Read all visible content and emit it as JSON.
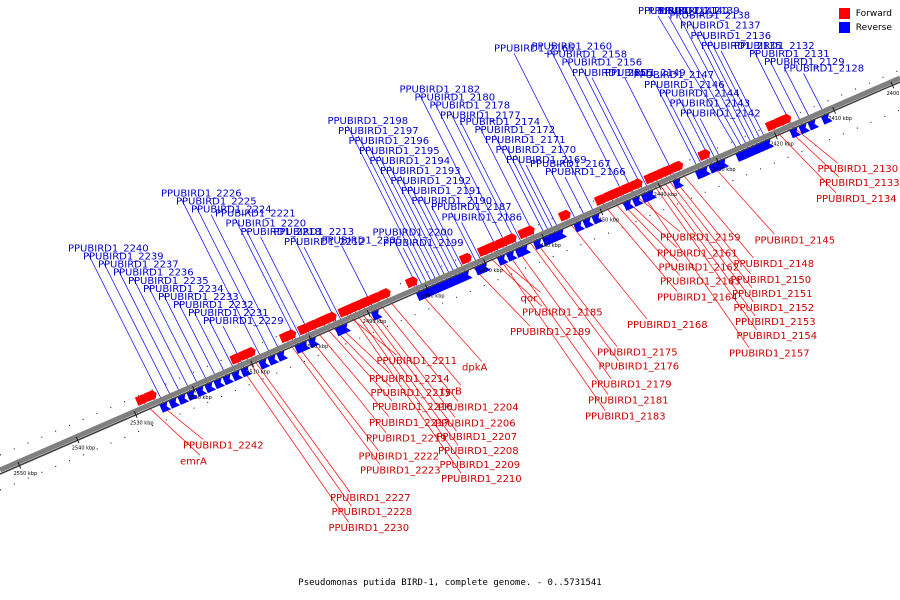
{
  "legend": {
    "items": [
      {
        "label": "Forward",
        "color": "#ff0000"
      },
      {
        "label": "Reverse",
        "color": "#0000ff"
      }
    ]
  },
  "caption": "Pseudomonas putida BIRD-1, complete genome. - 0..5731541",
  "colors": {
    "forward": "#ff0000",
    "reverse": "#0000ff",
    "backbone": "#808080"
  },
  "ticks": [
    "2400 kbp",
    "2410 kbp",
    "2420 kbp",
    "2430 kbp",
    "2440 kbp",
    "2450 kbp",
    "2460 kbp",
    "2470 kbp",
    "2480 kbp",
    "2490 kbp",
    "2500 kbp",
    "2510 kbp",
    "2520 kbp",
    "2530 kbp",
    "2540 kbp",
    "2550 kbp"
  ],
  "genes": [
    {
      "name": "PPUBIRD1_2128",
      "strand": "reverse",
      "pos": 0.085
    },
    {
      "name": "PPUBIRD1_2129",
      "strand": "reverse",
      "pos": 0.1
    },
    {
      "name": "PPUBIRD1_2130",
      "strand": "forward",
      "pos": 0.125
    },
    {
      "name": "PPUBIRD1_2131",
      "strand": "reverse",
      "pos": 0.11
    },
    {
      "name": "PPUBIRD1_2132",
      "strand": "reverse",
      "pos": 0.12
    },
    {
      "name": "PPUBIRD1_2133",
      "strand": "forward",
      "pos": 0.13
    },
    {
      "name": "PPUBIRD1_2134",
      "strand": "forward",
      "pos": 0.14
    },
    {
      "name": "PPUBIRD1_2135",
      "strand": "reverse",
      "pos": 0.15
    },
    {
      "name": "PPUBIRD1_2136",
      "strand": "reverse",
      "pos": 0.155
    },
    {
      "name": "PPUBIRD1_2137",
      "strand": "reverse",
      "pos": 0.16
    },
    {
      "name": "PPUBIRD1_2138",
      "strand": "reverse",
      "pos": 0.165
    },
    {
      "name": "PPUBIRD1_2139",
      "strand": "reverse",
      "pos": 0.17
    },
    {
      "name": "PPUBIRD1_2140",
      "strand": "reverse",
      "pos": 0.175
    },
    {
      "name": "PPUBIRD1_2141",
      "strand": "reverse",
      "pos": 0.18
    },
    {
      "name": "PPUBIRD1_2142",
      "strand": "reverse",
      "pos": 0.2
    },
    {
      "name": "PPUBIRD1_2143",
      "strand": "reverse",
      "pos": 0.205
    },
    {
      "name": "PPUBIRD1_2144",
      "strand": "reverse",
      "pos": 0.21
    },
    {
      "name": "PPUBIRD1_2145",
      "strand": "forward",
      "pos": 0.215
    },
    {
      "name": "PPUBIRD1_2146",
      "strand": "reverse",
      "pos": 0.22
    },
    {
      "name": "PPUBIRD1_2147",
      "strand": "reverse",
      "pos": 0.225
    },
    {
      "name": "PPUBIRD1_2148",
      "strand": "forward",
      "pos": 0.245
    },
    {
      "name": "PPUBIRD1_2149",
      "strand": "reverse",
      "pos": 0.25
    },
    {
      "name": "PPUBIRD1_2150",
      "strand": "forward",
      "pos": 0.255
    },
    {
      "name": "PPUBIRD1_2151",
      "strand": "forward",
      "pos": 0.26
    },
    {
      "name": "PPUBIRD1_2152",
      "strand": "forward",
      "pos": 0.265
    },
    {
      "name": "PPUBIRD1_2153",
      "strand": "forward",
      "pos": 0.27
    },
    {
      "name": "PPUBIRD1_2154",
      "strand": "forward",
      "pos": 0.275
    },
    {
      "name": "PPUBIRD1_2155",
      "strand": "reverse",
      "pos": 0.28
    },
    {
      "name": "PPUBIRD1_2156",
      "strand": "reverse",
      "pos": 0.285
    },
    {
      "name": "PPUBIRD1_2157",
      "strand": "forward",
      "pos": 0.29
    },
    {
      "name": "PPUBIRD1_2158",
      "strand": "reverse",
      "pos": 0.295
    },
    {
      "name": "PPUBIRD1_2159",
      "strand": "forward",
      "pos": 0.3
    },
    {
      "name": "PPUBIRD1_2160",
      "strand": "reverse",
      "pos": 0.305
    },
    {
      "name": "PPUBIRD1_2161",
      "strand": "forward",
      "pos": 0.31
    },
    {
      "name": "PPUBIRD1_2162",
      "strand": "forward",
      "pos": 0.315
    },
    {
      "name": "PPUBIRD1_2163",
      "strand": "forward",
      "pos": 0.32
    },
    {
      "name": "PPUBIRD1_2164",
      "strand": "forward",
      "pos": 0.33
    },
    {
      "name": "PPUBIRD1_2165",
      "strand": "reverse",
      "pos": 0.34
    },
    {
      "name": "PPUBIRD1_2166",
      "strand": "reverse",
      "pos": 0.35
    },
    {
      "name": "PPUBIRD1_2167",
      "strand": "reverse",
      "pos": 0.36
    },
    {
      "name": "PPUBIRD1_2168",
      "strand": "forward",
      "pos": 0.37
    },
    {
      "name": "PPUBIRD1_2169",
      "strand": "reverse",
      "pos": 0.38
    },
    {
      "name": "PPUBIRD1_2170",
      "strand": "reverse",
      "pos": 0.385
    },
    {
      "name": "PPUBIRD1_2171",
      "strand": "reverse",
      "pos": 0.39
    },
    {
      "name": "PPUBIRD1_2172",
      "strand": "reverse",
      "pos": 0.395
    },
    {
      "name": "PPUBIRD1_2174",
      "strand": "reverse",
      "pos": 0.405
    },
    {
      "name": "PPUBIRD1_2175",
      "strand": "forward",
      "pos": 0.41
    },
    {
      "name": "PPUBIRD1_2176",
      "strand": "forward",
      "pos": 0.415
    },
    {
      "name": "PPUBIRD1_2177",
      "strand": "reverse",
      "pos": 0.42
    },
    {
      "name": "PPUBIRD1_2178",
      "strand": "reverse",
      "pos": 0.425
    },
    {
      "name": "PPUBIRD1_2179",
      "strand": "forward",
      "pos": 0.43
    },
    {
      "name": "PPUBIRD1_2180",
      "strand": "reverse",
      "pos": 0.435
    },
    {
      "name": "PPUBIRD1_2181",
      "strand": "forward",
      "pos": 0.44
    },
    {
      "name": "PPUBIRD1_2182",
      "strand": "reverse",
      "pos": 0.445
    },
    {
      "name": "PPUBIRD1_2183",
      "strand": "forward",
      "pos": 0.45
    },
    {
      "name": "qor",
      "strand": "forward",
      "pos": 0.455
    },
    {
      "name": "PPUBIRD1_2185",
      "strand": "forward",
      "pos": 0.46
    },
    {
      "name": "PPUBIRD1_2186",
      "strand": "reverse",
      "pos": 0.465
    },
    {
      "name": "PPUBIRD1_2187",
      "strand": "reverse",
      "pos": 0.47
    },
    {
      "name": "PPUBIRD1_2189",
      "strand": "forward",
      "pos": 0.48
    },
    {
      "name": "PPUBIRD1_2190",
      "strand": "reverse",
      "pos": 0.485
    },
    {
      "name": "PPUBIRD1_2191",
      "strand": "reverse",
      "pos": 0.49
    },
    {
      "name": "PPUBIRD1_2192",
      "strand": "reverse",
      "pos": 0.495
    },
    {
      "name": "PPUBIRD1_2193",
      "strand": "reverse",
      "pos": 0.5
    },
    {
      "name": "PPUBIRD1_2194",
      "strand": "reverse",
      "pos": 0.505
    },
    {
      "name": "PPUBIRD1_2195",
      "strand": "reverse",
      "pos": 0.51
    },
    {
      "name": "PPUBIRD1_2196",
      "strand": "reverse",
      "pos": 0.515
    },
    {
      "name": "PPUBIRD1_2197",
      "strand": "reverse",
      "pos": 0.52
    },
    {
      "name": "PPUBIRD1_2198",
      "strand": "reverse",
      "pos": 0.525
    },
    {
      "name": "PPUBIRD1_2199",
      "strand": "reverse",
      "pos": 0.53
    },
    {
      "name": "PPUBIRD1_2200",
      "strand": "reverse",
      "pos": 0.535
    },
    {
      "name": "dpkA",
      "strand": "forward",
      "pos": 0.54
    },
    {
      "name": "tyrB",
      "strand": "forward",
      "pos": 0.57
    },
    {
      "name": "PPUBIRD1_2204",
      "strand": "forward",
      "pos": 0.58
    },
    {
      "name": "PPUBIRD1_2205",
      "strand": "reverse",
      "pos": 0.585
    },
    {
      "name": "PPUBIRD1_2206",
      "strand": "forward",
      "pos": 0.59
    },
    {
      "name": "PPUBIRD1_2207",
      "strand": "forward",
      "pos": 0.595
    },
    {
      "name": "PPUBIRD1_2208",
      "strand": "forward",
      "pos": 0.6
    },
    {
      "name": "PPUBIRD1_2209",
      "strand": "forward",
      "pos": 0.605
    },
    {
      "name": "PPUBIRD1_2210",
      "strand": "forward",
      "pos": 0.61
    },
    {
      "name": "PPUBIRD1_2211",
      "strand": "forward",
      "pos": 0.615
    },
    {
      "name": "PPUBIRD1_2212",
      "strand": "reverse",
      "pos": 0.62
    },
    {
      "name": "PPUBIRD1_2213",
      "strand": "reverse",
      "pos": 0.625
    },
    {
      "name": "PPUBIRD1_2214",
      "strand": "forward",
      "pos": 0.63
    },
    {
      "name": "PPUBIRD1_2215",
      "strand": "forward",
      "pos": 0.635
    },
    {
      "name": "PPUBIRD1_2216",
      "strand": "forward",
      "pos": 0.64
    },
    {
      "name": "PPUBIRD1_2217",
      "strand": "forward",
      "pos": 0.65
    },
    {
      "name": "PPUBIRD1_2218",
      "strand": "reverse",
      "pos": 0.655
    },
    {
      "name": "PPUBIRD1_2219",
      "strand": "forward",
      "pos": 0.66
    },
    {
      "name": "PPUBIRD1_2220",
      "strand": "reverse",
      "pos": 0.665
    },
    {
      "name": "PPUBIRD1_2221",
      "strand": "reverse",
      "pos": 0.67
    },
    {
      "name": "PPUBIRD1_2222",
      "strand": "forward",
      "pos": 0.675
    },
    {
      "name": "PPUBIRD1_2223",
      "strand": "forward",
      "pos": 0.68
    },
    {
      "name": "PPUBIRD1_2224",
      "strand": "reverse",
      "pos": 0.69
    },
    {
      "name": "PPUBIRD1_2225",
      "strand": "reverse",
      "pos": 0.7
    },
    {
      "name": "PPUBIRD1_2226",
      "strand": "reverse",
      "pos": 0.71
    },
    {
      "name": "PPUBIRD1_2227",
      "strand": "forward",
      "pos": 0.72
    },
    {
      "name": "PPUBIRD1_2228",
      "strand": "forward",
      "pos": 0.725
    },
    {
      "name": "PPUBIRD1_2229",
      "strand": "reverse",
      "pos": 0.73
    },
    {
      "name": "PPUBIRD1_2230",
      "strand": "forward",
      "pos": 0.735
    },
    {
      "name": "PPUBIRD1_2231",
      "strand": "reverse",
      "pos": 0.74
    },
    {
      "name": "PPUBIRD1_2232",
      "strand": "reverse",
      "pos": 0.75
    },
    {
      "name": "PPUBIRD1_2233",
      "strand": "reverse",
      "pos": 0.76
    },
    {
      "name": "PPUBIRD1_2234",
      "strand": "reverse",
      "pos": 0.77
    },
    {
      "name": "PPUBIRD1_2235",
      "strand": "reverse",
      "pos": 0.78
    },
    {
      "name": "PPUBIRD1_2236",
      "strand": "reverse",
      "pos": 0.79
    },
    {
      "name": "PPUBIRD1_2237",
      "strand": "reverse",
      "pos": 0.8
    },
    {
      "name": "PPUBIRD1_2239",
      "strand": "reverse",
      "pos": 0.81
    },
    {
      "name": "PPUBIRD1_2240",
      "strand": "reverse",
      "pos": 0.82
    },
    {
      "name": "PPUBIRD1_2242",
      "strand": "forward",
      "pos": 0.83
    },
    {
      "name": "emrA",
      "strand": "forward",
      "pos": 0.84
    }
  ]
}
